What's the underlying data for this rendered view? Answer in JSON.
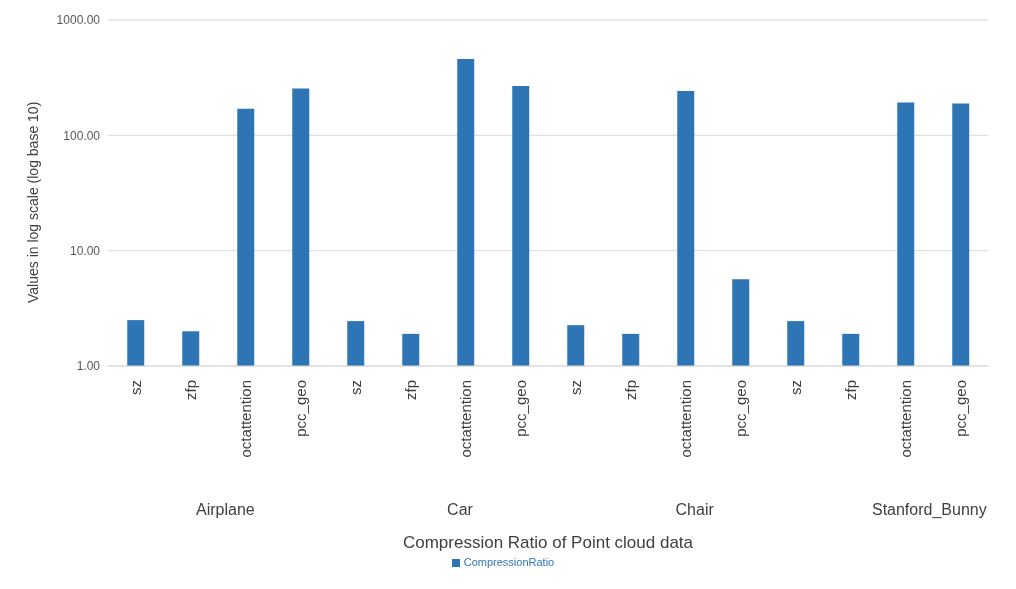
{
  "chart_data": {
    "type": "bar",
    "xlabel": "Compression Ratio of Point cloud data",
    "ylabel": "Values in log scale (log base 10)",
    "categories": [
      "sz",
      "zfp",
      "octattention",
      "pcc_geo",
      "sz",
      "zfp",
      "octattention",
      "pcc_geo",
      "sz",
      "zfp",
      "octattention",
      "pcc_geo",
      "sz",
      "zfp",
      "octattention",
      "pcc_geo"
    ],
    "annotations": [
      "Airplane",
      "Car",
      "Chair",
      "Stanford_Bunny"
    ],
    "series": [
      {
        "name": "CompressionRatio",
        "color": "#2e75b6",
        "values": [
          2.5,
          2.0,
          170,
          255,
          2.45,
          1.9,
          460,
          268,
          2.26,
          1.9,
          242,
          5.65,
          2.45,
          1.9,
          193,
          189
        ]
      }
    ],
    "log": "y",
    "ylim": [
      1,
      1000
    ],
    "yticks": [
      {
        "value": 1,
        "label": "1.00"
      },
      {
        "value": 10,
        "label": "10.00"
      },
      {
        "value": 100,
        "label": "100.00"
      },
      {
        "value": 1000,
        "label": "1000.00"
      }
    ],
    "grid": "y",
    "legend": "bottom"
  }
}
